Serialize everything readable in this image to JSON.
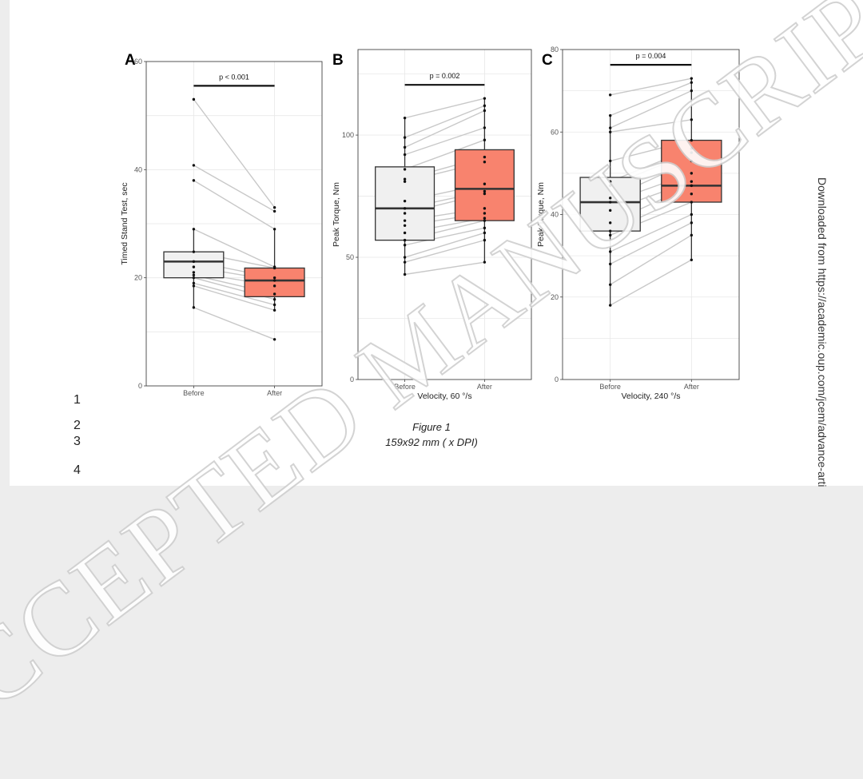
{
  "line_numbers": [
    "1",
    "2",
    "3",
    "4"
  ],
  "caption": {
    "title": "Figure 1",
    "subtitle": "159x92 mm ( x DPI)"
  },
  "side_note": "Downloaded from https://academic.oup.com/jcem/advance-arti",
  "watermark": "ACCEPTED MANUSCRIPT",
  "colors": {
    "before_fill": "#f0f0f0",
    "after_fill": "#f8836e",
    "pair_line": "#c8c8c8",
    "grid": "#e8e8e8"
  },
  "chart_data": [
    {
      "panel": "A",
      "type": "box",
      "ylabel": "Timed Stand Test, sec",
      "xlabel": "",
      "categories": [
        "Before",
        "After"
      ],
      "ylim": [
        0,
        60
      ],
      "yticks": [
        0,
        20,
        40,
        60
      ],
      "pvalue": "p < 0.001",
      "boxes": [
        {
          "q1": 20,
          "median": 23,
          "q3": 24.8,
          "whisker_low": 14.5,
          "whisker_high": 29
        },
        {
          "q1": 16.5,
          "median": 19.5,
          "q3": 21.8,
          "whisker_low": 14,
          "whisker_high": 29
        }
      ],
      "pairs": [
        [
          53,
          33
        ],
        [
          40.8,
          32.3
        ],
        [
          38,
          29
        ],
        [
          29,
          22
        ],
        [
          24.8,
          21.8
        ],
        [
          23,
          20
        ],
        [
          22,
          19.5
        ],
        [
          21,
          18.5
        ],
        [
          20.5,
          17
        ],
        [
          20,
          16
        ],
        [
          19,
          15
        ],
        [
          18.5,
          14
        ],
        [
          14.5,
          8.6
        ]
      ]
    },
    {
      "panel": "B",
      "type": "box",
      "ylabel": "Peak Torque, Nm",
      "xlabel": "Velocity, 60 °/s",
      "categories": [
        "Before",
        "After"
      ],
      "ylim": [
        0,
        135
      ],
      "yticks": [
        0,
        50,
        100
      ],
      "pvalue": "p = 0.002",
      "boxes": [
        {
          "q1": 57,
          "median": 70,
          "q3": 87,
          "whisker_low": 43,
          "whisker_high": 107
        },
        {
          "q1": 65,
          "median": 78,
          "q3": 94,
          "whisker_low": 48,
          "whisker_high": 115
        }
      ],
      "pairs": [
        [
          107,
          115
        ],
        [
          99,
          112
        ],
        [
          95,
          110
        ],
        [
          92,
          103
        ],
        [
          86,
          98
        ],
        [
          82,
          91
        ],
        [
          81,
          89
        ],
        [
          73,
          80
        ],
        [
          70,
          77
        ],
        [
          68,
          76
        ],
        [
          65,
          70
        ],
        [
          63,
          68
        ],
        [
          60,
          66
        ],
        [
          57,
          65
        ],
        [
          55,
          62
        ],
        [
          50,
          60
        ],
        [
          48,
          57
        ],
        [
          43,
          48
        ]
      ]
    },
    {
      "panel": "C",
      "type": "box",
      "ylabel": "Peak Torque, Nm",
      "xlabel": "Velocity, 240 °/s",
      "categories": [
        "Before",
        "After"
      ],
      "ylim": [
        0,
        80
      ],
      "yticks": [
        0,
        20,
        40,
        60,
        80
      ],
      "pvalue": "p = 0.004",
      "boxes": [
        {
          "q1": 36,
          "median": 43,
          "q3": 49,
          "whisker_low": 18,
          "whisker_high": 64
        },
        {
          "q1": 43,
          "median": 47,
          "q3": 58,
          "whisker_low": 29,
          "whisker_high": 73
        }
      ],
      "pairs": [
        [
          69,
          73
        ],
        [
          64,
          72
        ],
        [
          61,
          70
        ],
        [
          60,
          63
        ],
        [
          53,
          58
        ],
        [
          48,
          56
        ],
        [
          47,
          55
        ],
        [
          44,
          53
        ],
        [
          43,
          50
        ],
        [
          41,
          48
        ],
        [
          38,
          47
        ],
        [
          36,
          45
        ],
        [
          35,
          43
        ],
        [
          31,
          40
        ],
        [
          28,
          38
        ],
        [
          23,
          35
        ],
        [
          18,
          29
        ]
      ]
    }
  ]
}
